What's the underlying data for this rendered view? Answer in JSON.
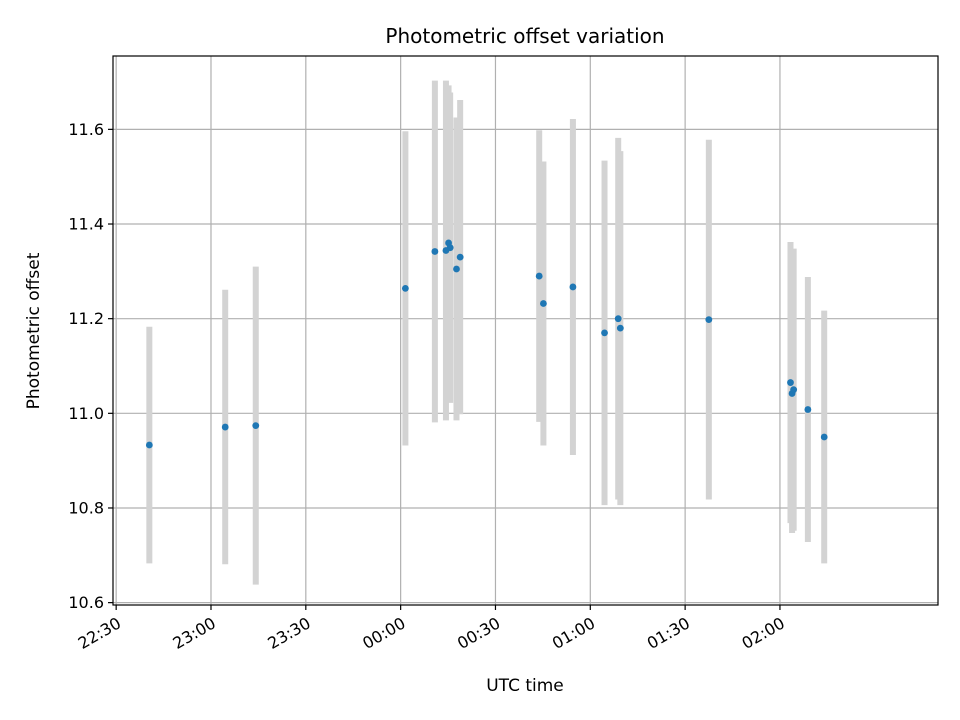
{
  "chart_data": {
    "type": "scatter",
    "title": "Photometric offset variation",
    "xlabel": "UTC time",
    "ylabel": "Photometric offset",
    "x_axis_kind": "time",
    "xlim": [
      "22:29",
      "02:50"
    ],
    "ylim": [
      10.595,
      11.755
    ],
    "grid": true,
    "x_ticks": [
      "22:30",
      "23:00",
      "23:30",
      "00:00",
      "00:30",
      "01:00",
      "01:30",
      "02:00"
    ],
    "y_ticks": [
      "10.6",
      "10.8",
      "11.0",
      "11.2",
      "11.4",
      "11.6"
    ],
    "colors": {
      "point": "#1f77b4",
      "errorbar": "#d3d3d3",
      "grid": "#b0b0b0"
    },
    "series": [
      {
        "points": [
          {
            "x": "22:40:30",
            "y": 10.933,
            "ymin": 10.683,
            "ymax": 11.183
          },
          {
            "x": "23:04:30",
            "y": 10.971,
            "ymin": 10.681,
            "ymax": 11.261
          },
          {
            "x": "23:14:10",
            "y": 10.974,
            "ymin": 10.638,
            "ymax": 11.31
          },
          {
            "x": "00:01:30",
            "y": 11.264,
            "ymin": 10.932,
            "ymax": 11.596
          },
          {
            "x": "00:10:50",
            "y": 11.342,
            "ymin": 10.981,
            "ymax": 11.703
          },
          {
            "x": "00:14:20",
            "y": 11.344,
            "ymin": 10.985,
            "ymax": 11.703
          },
          {
            "x": "00:15:10",
            "y": 11.36,
            "ymin": 11.027,
            "ymax": 11.693
          },
          {
            "x": "00:15:40",
            "y": 11.35,
            "ymin": 11.022,
            "ymax": 11.678
          },
          {
            "x": "00:17:40",
            "y": 11.305,
            "ymin": 10.985,
            "ymax": 11.625
          },
          {
            "x": "00:18:50",
            "y": 11.33,
            "ymin": 10.998,
            "ymax": 11.662
          },
          {
            "x": "00:43:50",
            "y": 11.29,
            "ymin": 10.982,
            "ymax": 11.598
          },
          {
            "x": "00:45:10",
            "y": 11.232,
            "ymin": 10.932,
            "ymax": 11.532
          },
          {
            "x": "00:54:30",
            "y": 11.267,
            "ymin": 10.912,
            "ymax": 11.622
          },
          {
            "x": "01:04:30",
            "y": 11.17,
            "ymin": 10.806,
            "ymax": 11.534
          },
          {
            "x": "01:08:50",
            "y": 11.2,
            "ymin": 10.818,
            "ymax": 11.582
          },
          {
            "x": "01:09:30",
            "y": 11.18,
            "ymin": 10.806,
            "ymax": 11.554
          },
          {
            "x": "01:37:30",
            "y": 11.198,
            "ymin": 10.818,
            "ymax": 11.578
          },
          {
            "x": "02:03:20",
            "y": 11.065,
            "ymin": 10.768,
            "ymax": 11.362
          },
          {
            "x": "02:03:50",
            "y": 11.042,
            "ymin": 10.747,
            "ymax": 11.337
          },
          {
            "x": "02:04:20",
            "y": 11.05,
            "ymin": 10.752,
            "ymax": 11.348
          },
          {
            "x": "02:08:50",
            "y": 11.008,
            "ymin": 10.728,
            "ymax": 11.288
          },
          {
            "x": "02:14:00",
            "y": 10.95,
            "ymin": 10.683,
            "ymax": 11.217
          }
        ]
      }
    ]
  }
}
